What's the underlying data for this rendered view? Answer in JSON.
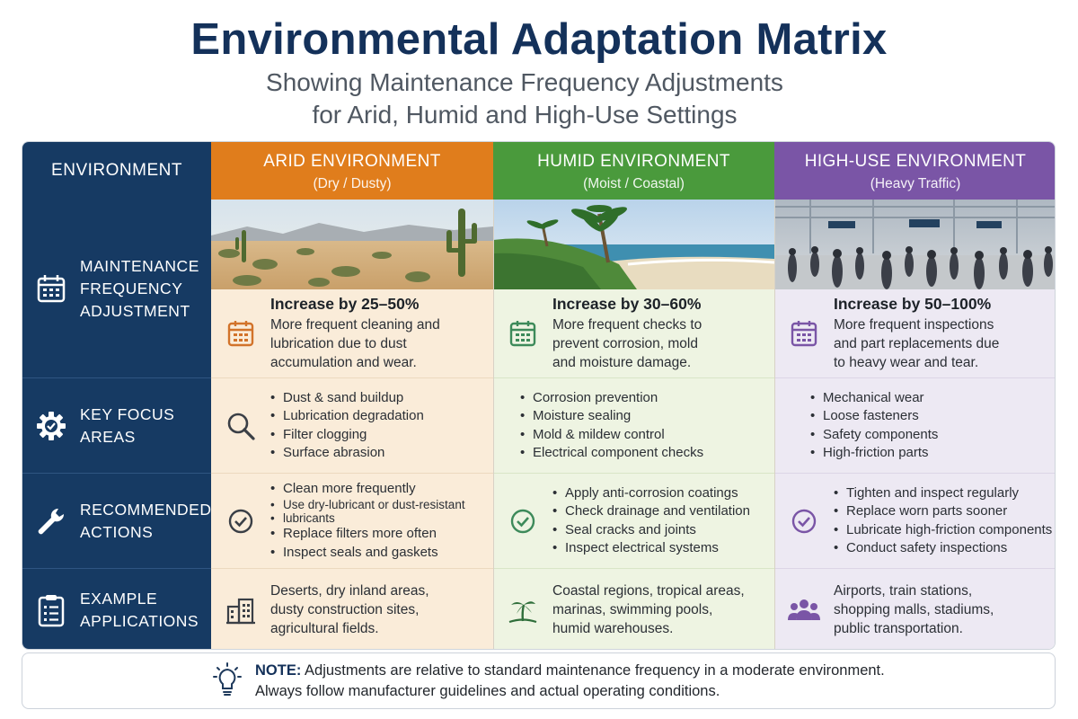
{
  "title": "Environmental Adaptation Matrix",
  "subtitle_line1": "Showing Maintenance Frequency Adjustments",
  "subtitle_line2": "for Arid, Humid and High-Use Settings",
  "header_label": "ENVIRONMENT",
  "columns": [
    {
      "name": "ARID ENVIRONMENT",
      "sub": "(Dry / Dusty)",
      "color": "#e07d1c"
    },
    {
      "name": "HUMID ENVIRONMENT",
      "sub": "(Moist / Coastal)",
      "color": "#4a9a3c"
    },
    {
      "name": "HIGH-USE ENVIRONMENT",
      "sub": "(Heavy Traffic)",
      "color": "#7a55a6"
    }
  ],
  "rows": [
    {
      "label": [
        "MAINTENANCE",
        "FREQUENCY",
        "ADJUSTMENT"
      ],
      "icon": "calendar-icon"
    },
    {
      "label": [
        "KEY FOCUS",
        "AREAS"
      ],
      "icon": "gear-check-icon"
    },
    {
      "label": [
        "RECOMMENDED",
        "ACTIONS"
      ],
      "icon": "wrench-icon"
    },
    {
      "label": [
        "EXAMPLE",
        "APPLICATIONS"
      ],
      "icon": "clipboard-icon"
    }
  ],
  "arid": {
    "freq_title": "Increase by 25–50%",
    "freq_text": [
      "More frequent cleaning and",
      "lubrication due to dust",
      "accumulation and wear."
    ],
    "focus": [
      "Dust & sand buildup",
      "Lubrication degradation",
      "Filter clogging",
      "Surface abrasion"
    ],
    "actions": [
      "Clean more frequently",
      "Use dry-lubricant or dust-resistant",
      "lubricants",
      "Replace filters more often",
      "Inspect seals and gaskets"
    ],
    "apps": [
      "Deserts, dry inland areas,",
      "dusty construction sites,",
      "agricultural fields."
    ],
    "colors": {
      "icon": "#d2732a"
    }
  },
  "humid": {
    "freq_title": "Increase by 30–60%",
    "freq_text": [
      "More frequent checks to",
      "prevent corrosion, mold",
      "and moisture damage."
    ],
    "focus": [
      "Corrosion prevention",
      "Moisture sealing",
      "Mold & mildew control",
      "Electrical component checks"
    ],
    "actions": [
      "Apply anti-corrosion coatings",
      "Check drainage and ventilation",
      "Seal cracks and joints",
      "Inspect electrical systems"
    ],
    "apps": [
      "Coastal regions, tropical areas,",
      "marinas, swimming pools,",
      "humid warehouses."
    ],
    "colors": {
      "icon": "#3d8a5a"
    }
  },
  "high": {
    "freq_title": "Increase by 50–100%",
    "freq_text": [
      "More frequent inspections",
      "and part replacements due",
      "to heavy wear and tear."
    ],
    "focus": [
      "Mechanical wear",
      "Loose fasteners",
      "Safety components",
      "High-friction parts"
    ],
    "actions": [
      "Tighten and inspect regularly",
      "Replace worn parts sooner",
      "Lubricate high-friction components",
      "Conduct safety inspections"
    ],
    "apps": [
      "Airports, train stations,",
      "shopping malls, stadiums,",
      "public transportation."
    ],
    "colors": {
      "icon": "#7a55a6"
    }
  },
  "note": {
    "label": "NOTE:",
    "line1": "Adjustments are relative to standard maintenance frequency in a moderate environment.",
    "line2": "Always follow manufacturer guidelines and actual operating conditions."
  }
}
